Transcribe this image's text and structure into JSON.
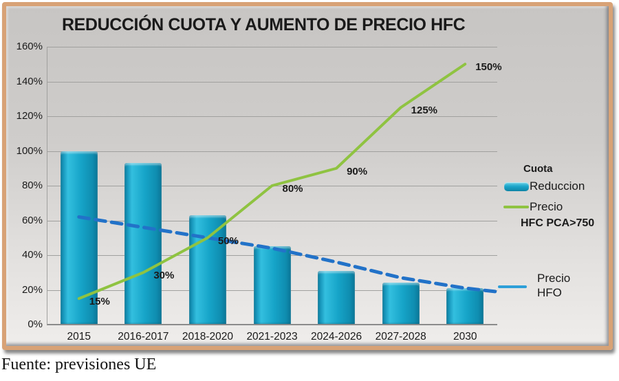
{
  "title": "REDUCCIÓN CUOTA Y AUMENTO DE PRECIO HFC",
  "source_note": "Fuente: previsiones UE",
  "colors": {
    "bar_teal": "#16a4c8",
    "bar_edge_dark": "#0a7a9b",
    "hfc_line_green": "#8fc341",
    "hfo_line_blue": "#2272c8",
    "hfo_legend_swatch_blue": "#2e9fd8",
    "frame_border_tan": "#d8a276",
    "slide_bg_top": "#c7c5c3",
    "slide_bg_bottom": "#efedeb"
  },
  "legend": {
    "cuota_header": "Cuota",
    "reduccion_label": "Reduccion",
    "precio_label": "Precio",
    "hfc_sub_label": "HFC PCA>750",
    "hfo_label_line1": "Precio",
    "hfo_label_line2": "HFO"
  },
  "chart_data": {
    "type": "bar",
    "subtype": "bar+line combo",
    "categories": [
      "2015",
      "2016-2017",
      "2018-2020",
      "2021-2023",
      "2024-2026",
      "2027-2028",
      "2030"
    ],
    "series": [
      {
        "name": "Cuota Reduccion",
        "type": "bar",
        "unit": "%",
        "values": [
          100,
          93,
          63,
          45,
          31,
          24,
          21
        ]
      },
      {
        "name": "Precio HFC PCA>750",
        "type": "line",
        "unit": "%",
        "values": [
          15,
          30,
          50,
          80,
          90,
          125,
          150
        ],
        "point_labels": [
          "15%",
          "30%",
          "50%",
          "80%",
          "90%",
          "125%",
          "150%"
        ]
      },
      {
        "name": "Precio HFO",
        "type": "line-dashed",
        "unit": "%",
        "values": [
          62,
          56,
          50,
          44,
          36,
          27,
          21
        ],
        "right_extension_value": 19
      }
    ],
    "y_tick_labels": [
      "0%",
      "20%",
      "40%",
      "60%",
      "80%",
      "100%",
      "120%",
      "140%",
      "160%"
    ],
    "ylim": [
      0,
      160
    ],
    "grid": true,
    "legend_position": "right"
  }
}
